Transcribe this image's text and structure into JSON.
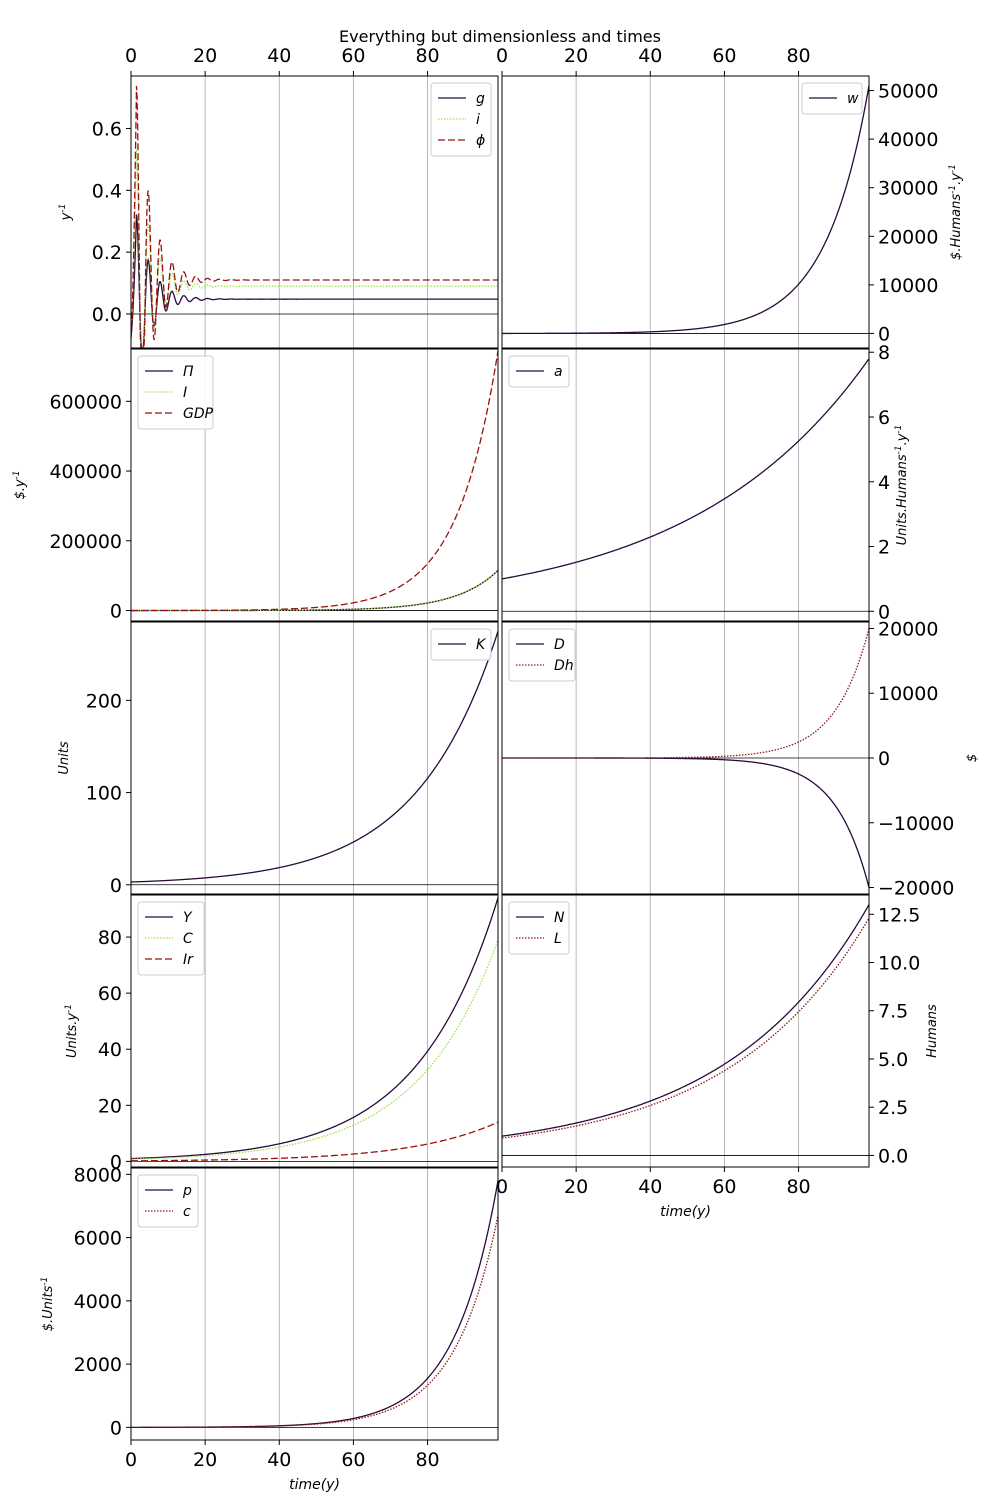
{
  "figure": {
    "title": "Everything but dimensionless and times",
    "xlabel": "time(y)"
  },
  "colors": {
    "dark": "#2b0a3d",
    "lime": "#9ee34a",
    "red": "#9b1111",
    "brown": "#8a1a1a",
    "grid": "#b0b0b0",
    "zero": "#000000"
  },
  "chart_data": [
    {
      "type": "line",
      "panel": "g_i_phi",
      "ylabel": "y^{-1}",
      "xlim": [
        0,
        99
      ],
      "ylim": [
        -0.11,
        0.77
      ],
      "yticks": [
        0.0,
        0.2,
        0.4,
        0.6
      ],
      "ytick_labels": [
        "0.0",
        "0.2",
        "0.4",
        "0.6"
      ],
      "xticks": [
        0,
        20,
        40,
        60,
        80
      ],
      "xtick_labels": [
        "0",
        "20",
        "40",
        "60",
        "80"
      ],
      "legend": "top-right",
      "series": [
        {
          "name": "g",
          "style": "solid",
          "color": "dark",
          "shape": "osc",
          "base": 0.048,
          "amp": 0.28,
          "t0": 1.5,
          "period": 3.2,
          "tau": 4.0,
          "start": -0.07
        },
        {
          "name": "i",
          "style": "dotted",
          "color": "lime",
          "shape": "osc",
          "base": 0.09,
          "amp": 0.45,
          "t0": 1.5,
          "period": 3.2,
          "tau": 4.0,
          "start": -0.05
        },
        {
          "name": "ϕ",
          "style": "dashed",
          "color": "red",
          "shape": "osc",
          "base": 0.11,
          "amp": 0.64,
          "t0": 1.5,
          "period": 3.2,
          "tau": 4.0,
          "start": -0.08
        }
      ]
    },
    {
      "type": "line",
      "panel": "w",
      "ylabel": "$.Humans^{-1}.y^{-1}",
      "xlim": [
        0,
        99
      ],
      "ylim": [
        -3000,
        53000
      ],
      "yticks": [
        0,
        10000,
        20000,
        30000,
        40000,
        50000
      ],
      "ytick_labels": [
        "0",
        "10000",
        "20000",
        "30000",
        "40000",
        "50000"
      ],
      "xticks": [
        0,
        20,
        40,
        60,
        80
      ],
      "xtick_labels": [
        "0",
        "20",
        "40",
        "60",
        "80"
      ],
      "legend": "top-right",
      "series": [
        {
          "name": "w",
          "style": "solid",
          "color": "dark",
          "shape": "exp",
          "y0": 0,
          "y1": 51000,
          "k": 0.085
        }
      ]
    },
    {
      "type": "line",
      "panel": "Pi_I_GDP",
      "ylabel": "$.y^{-1}",
      "xlim": [
        0,
        99
      ],
      "ylim": [
        -30000,
        750000
      ],
      "yticks": [
        0,
        200000,
        400000,
        600000
      ],
      "ytick_labels": [
        "0",
        "200000",
        "400000",
        "600000"
      ],
      "legend": "top-left",
      "series": [
        {
          "name": "Π",
          "style": "solid",
          "color": "dark",
          "shape": "exp",
          "y0": 0,
          "y1": 115000,
          "k": 0.088
        },
        {
          "name": "I",
          "style": "dotted",
          "color": "lime",
          "shape": "exp",
          "y0": 0,
          "y1": 115000,
          "k": 0.088
        },
        {
          "name": "GDP",
          "style": "dashed",
          "color": "red",
          "shape": "exp",
          "y0": 0,
          "y1": 745000,
          "k": 0.09
        }
      ]
    },
    {
      "type": "line",
      "panel": "a",
      "ylabel": "Units.Humans^{-1}.y^{-1}",
      "xlim": [
        0,
        99
      ],
      "ylim": [
        -0.3,
        8.1
      ],
      "yticks": [
        0,
        2,
        4,
        6,
        8
      ],
      "ytick_labels": [
        "0",
        "2",
        "4",
        "6",
        "8"
      ],
      "legend": "top-left",
      "series": [
        {
          "name": "a",
          "style": "solid",
          "color": "dark",
          "shape": "exp",
          "y0": 1.0,
          "y1": 7.8,
          "k": 0.0208,
          "plain": true
        }
      ]
    },
    {
      "type": "line",
      "panel": "K",
      "ylabel": "Units",
      "xlim": [
        0,
        99
      ],
      "ylim": [
        -10,
        285
      ],
      "yticks": [
        0,
        100,
        200
      ],
      "ytick_labels": [
        "0",
        "100",
        "200"
      ],
      "legend": "top-right",
      "series": [
        {
          "name": "K",
          "style": "solid",
          "color": "dark",
          "shape": "exp",
          "y0": 3,
          "y1": 275,
          "k": 0.046,
          "plain": true
        }
      ]
    },
    {
      "type": "line",
      "panel": "D_Dh",
      "ylabel": "$",
      "xlim": [
        0,
        99
      ],
      "ylim": [
        -21000,
        21000
      ],
      "yticks": [
        -20000,
        -10000,
        0,
        10000,
        20000
      ],
      "ytick_labels": [
        "−20000",
        "−10000",
        "0",
        "10000",
        "20000"
      ],
      "legend": "top-left",
      "series": [
        {
          "name": "D",
          "style": "solid",
          "color": "dark",
          "shape": "exp",
          "y0": 0,
          "y1": -20000,
          "k": 0.11
        },
        {
          "name": "Dh",
          "style": "dotted",
          "color": "brown",
          "shape": "exp",
          "y0": 0,
          "y1": 20000,
          "k": 0.11
        }
      ]
    },
    {
      "type": "line",
      "panel": "Y_C_Ir",
      "ylabel": "Units.y^{-1}",
      "xlim": [
        0,
        99
      ],
      "ylim": [
        -2,
        95
      ],
      "yticks": [
        0,
        20,
        40,
        60,
        80
      ],
      "ytick_labels": [
        "0",
        "20",
        "40",
        "60",
        "80"
      ],
      "legend": "top-left",
      "series": [
        {
          "name": "Y",
          "style": "solid",
          "color": "dark",
          "shape": "exp",
          "y0": 1.0,
          "y1": 94,
          "k": 0.046,
          "plain": true
        },
        {
          "name": "C",
          "style": "dotted",
          "color": "lime",
          "shape": "exp",
          "y0": 0.8,
          "y1": 79,
          "k": 0.046,
          "plain": true
        },
        {
          "name": "Ir",
          "style": "dashed",
          "color": "red",
          "shape": "exp",
          "y0": 0.2,
          "y1": 14,
          "k": 0.046,
          "plain": true
        }
      ]
    },
    {
      "type": "line",
      "panel": "N_L",
      "ylabel": "Humans",
      "xlim": [
        0,
        99
      ],
      "ylim": [
        -0.6,
        13.5
      ],
      "yticks": [
        0,
        2.5,
        5,
        7.5,
        10,
        12.5
      ],
      "ytick_labels": [
        "0.0",
        "2.5",
        "5.0",
        "7.5",
        "10.0",
        "12.5"
      ],
      "xticks": [
        0,
        20,
        40,
        60,
        80
      ],
      "xtick_labels": [
        "0",
        "20",
        "40",
        "60",
        "80"
      ],
      "legend": "top-left",
      "series": [
        {
          "name": "N",
          "style": "solid",
          "color": "dark",
          "shape": "exp",
          "y0": 1.0,
          "y1": 13.0,
          "k": 0.0262,
          "plain": true
        },
        {
          "name": "L",
          "style": "dotted",
          "color": "brown",
          "shape": "exp",
          "y0": 0.9,
          "y1": 12.3,
          "k": 0.0265,
          "plain": true
        }
      ]
    },
    {
      "type": "line",
      "panel": "p_c",
      "ylabel": "$.Units^{-1}",
      "xlim": [
        0,
        99
      ],
      "ylim": [
        -400,
        8200
      ],
      "yticks": [
        0,
        2000,
        4000,
        6000,
        8000
      ],
      "ytick_labels": [
        "0",
        "2000",
        "4000",
        "6000",
        "8000"
      ],
      "xticks": [
        0,
        20,
        40,
        60,
        80
      ],
      "xtick_labels": [
        "0",
        "20",
        "40",
        "60",
        "80"
      ],
      "legend": "top-left",
      "series": [
        {
          "name": "p",
          "style": "solid",
          "color": "dark",
          "shape": "exp",
          "y0": 0,
          "y1": 7800,
          "k": 0.085
        },
        {
          "name": "c",
          "style": "dotted",
          "color": "brown",
          "shape": "exp",
          "y0": 0,
          "y1": 6700,
          "k": 0.085
        }
      ]
    }
  ]
}
